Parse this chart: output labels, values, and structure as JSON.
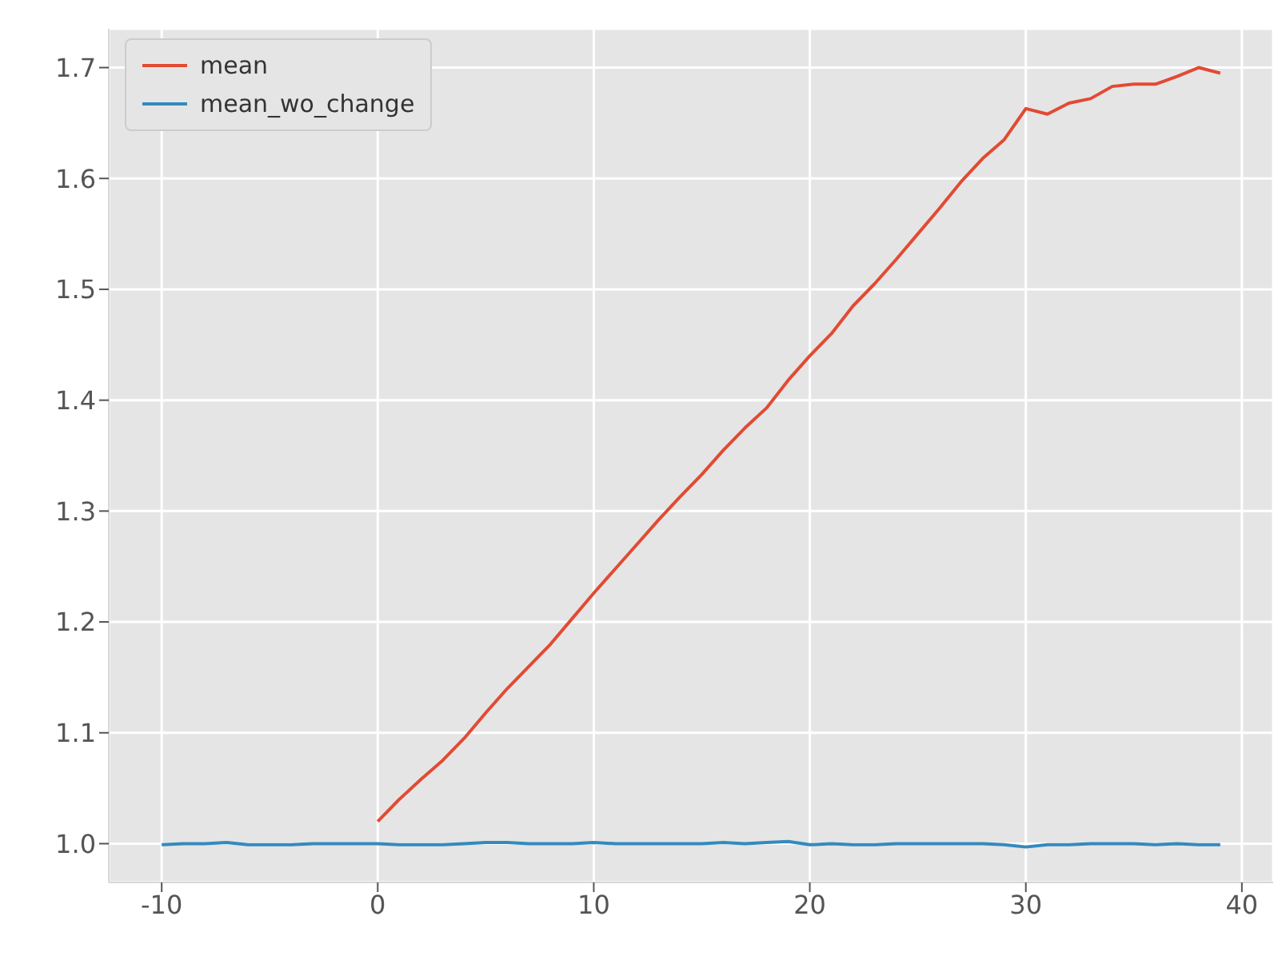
{
  "chart_data": {
    "type": "line",
    "xlim": [
      -12.45,
      41.45
    ],
    "ylim": [
      0.965,
      1.735
    ],
    "xticks": [
      -10,
      0,
      10,
      20,
      30,
      40
    ],
    "yticks": [
      {
        "value": 1,
        "label": "1.0"
      },
      1.1,
      1.2,
      1.3,
      1.4,
      1.5,
      1.6,
      1.7
    ],
    "grid": true,
    "legend": "top left",
    "series": [
      {
        "name": "mean",
        "color": "#e24a33",
        "x": [
          0,
          1,
          2,
          3,
          4,
          5,
          6,
          7,
          8,
          9,
          10,
          11,
          12,
          13,
          14,
          15,
          16,
          17,
          18,
          19,
          20,
          21,
          22,
          23,
          24,
          25,
          26,
          27,
          28,
          29,
          30,
          31,
          32,
          33,
          34,
          35,
          36,
          37,
          38,
          39
        ],
        "values": [
          1.02,
          1.04,
          1.058,
          1.075,
          1.095,
          1.118,
          1.14,
          1.16,
          1.18,
          1.203,
          1.226,
          1.248,
          1.27,
          1.292,
          1.313,
          1.333,
          1.355,
          1.375,
          1.393,
          1.418,
          1.44,
          1.46,
          1.485,
          1.505,
          1.527,
          1.55,
          1.573,
          1.597,
          1.618,
          1.635,
          1.663,
          1.658,
          1.668,
          1.672,
          1.683,
          1.685,
          1.685,
          1.692,
          1.7,
          1.695
        ]
      },
      {
        "name": "mean_wo_change",
        "color": "#348abd",
        "x": [
          -10,
          -9,
          -8,
          -7,
          -6,
          -5,
          -4,
          -3,
          -2,
          -1,
          0,
          1,
          2,
          3,
          4,
          5,
          6,
          7,
          8,
          9,
          10,
          11,
          12,
          13,
          14,
          15,
          16,
          17,
          18,
          19,
          20,
          21,
          22,
          23,
          24,
          25,
          26,
          27,
          28,
          29,
          30,
          31,
          32,
          33,
          34,
          35,
          36,
          37,
          38,
          39
        ],
        "values": [
          0.999,
          1.0,
          1.0,
          1.001,
          0.999,
          0.999,
          0.999,
          1.0,
          1.0,
          1.0,
          1.0,
          0.999,
          0.999,
          0.999,
          1.0,
          1.001,
          1.001,
          1.0,
          1.0,
          1.0,
          1.001,
          1.0,
          1.0,
          1.0,
          1.0,
          1.0,
          1.001,
          1.0,
          1.001,
          1.002,
          0.999,
          1.0,
          0.999,
          0.999,
          1.0,
          1.0,
          1.0,
          1.0,
          1.0,
          0.999,
          0.997,
          0.999,
          0.999,
          1.0,
          1.0,
          1.0,
          0.999,
          1.0,
          0.999,
          0.999
        ]
      }
    ]
  }
}
